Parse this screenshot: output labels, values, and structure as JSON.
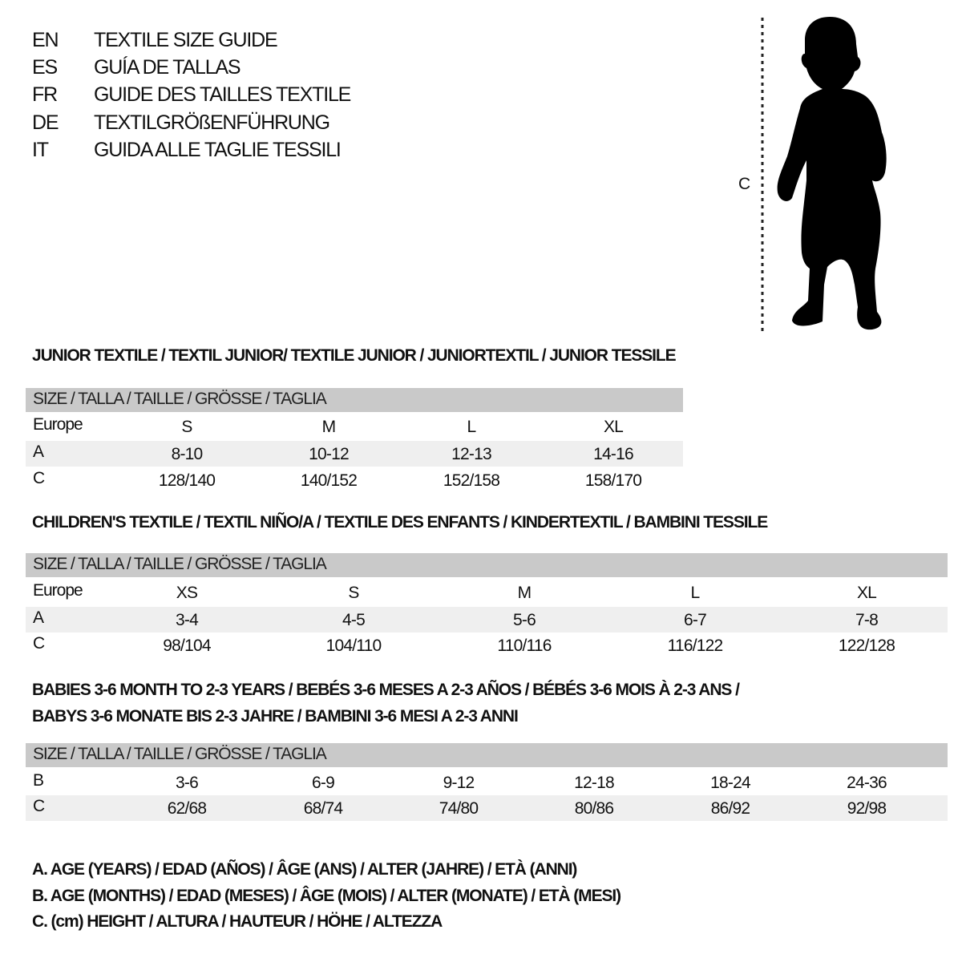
{
  "header": [
    {
      "code": "EN",
      "text": "TEXTILE SIZE GUIDE"
    },
    {
      "code": "ES",
      "text": "GUÍA DE TALLAS"
    },
    {
      "code": "FR",
      "text": "GUIDE DES TAILLES TEXTILE"
    },
    {
      "code": "DE",
      "text": "TEXTILGRÖßENFÜHRUNG"
    },
    {
      "code": "IT",
      "text": "GUIDA ALLE TAGLIE TESSILI"
    }
  ],
  "figure": {
    "measure_label": "C"
  },
  "sections": [
    {
      "title_lines": [
        "JUNIOR TEXTILE / TEXTIL JUNIOR/ TEXTILE JUNIOR / JUNIORTEXTIL / JUNIOR TESSILE"
      ],
      "header": "SIZE / TALLA / TAILLE / GRÖSSE / TAGLIA",
      "rows": [
        {
          "label": "Europe",
          "values": [
            "S",
            "M",
            "L",
            "XL"
          ]
        },
        {
          "label": "A",
          "values": [
            "8-10",
            "10-12",
            "12-13",
            "14-16"
          ]
        },
        {
          "label": "C",
          "values": [
            "128/140",
            "140/152",
            "152/158",
            "158/170"
          ]
        }
      ]
    },
    {
      "title_lines": [
        "CHILDREN'S TEXTILE / TEXTIL NIÑO/A / TEXTILE DES ENFANTS / KINDERTEXTIL / BAMBINI TESSILE"
      ],
      "header": "SIZE / TALLA / TAILLE / GRÖSSE / TAGLIA",
      "rows": [
        {
          "label": "Europe",
          "values": [
            "XS",
            "S",
            "M",
            "L",
            "XL"
          ]
        },
        {
          "label": "A",
          "values": [
            "3-4",
            "4-5",
            "5-6",
            "6-7",
            "7-8"
          ]
        },
        {
          "label": "C",
          "values": [
            "98/104",
            "104/110",
            "110/116",
            "116/122",
            "122/128"
          ]
        }
      ]
    },
    {
      "title_lines": [
        "BABIES 3-6 MONTH TO 2-3 YEARS / BEBÉS 3-6 MESES A 2-3 AÑOS / BÉBÉS 3-6 MOIS À 2-3 ANS /",
        "BABYS 3-6 MONATE BIS 2-3 JAHRE / BAMBINI 3-6 MESI A 2-3 ANNI"
      ],
      "header": "SIZE / TALLA / TAILLE / GRÖSSE / TAGLIA",
      "rows": [
        {
          "label": "B",
          "values": [
            "3-6",
            "6-9",
            "9-12",
            "12-18",
            "18-24",
            "24-36"
          ]
        },
        {
          "label": "C",
          "values": [
            "62/68",
            "68/74",
            "74/80",
            "80/86",
            "86/92",
            "92/98"
          ]
        }
      ]
    }
  ],
  "legend": [
    "A. AGE (YEARS) / EDAD (AÑOS) / ÂGE (ANS) / ALTER (JAHRE) / ETÀ (ANNI)",
    "B. AGE (MONTHS) / EDAD (MESES) / ÂGE (MOIS) / ALTER (MONATE) / ETÀ (MESI)",
    "C. (cm) HEIGHT / ALTURA / HAUTEUR / HÖHE / ALTEZZA"
  ],
  "colors": {
    "header_bar": "#c9c9c9",
    "row_shade": "#efefef",
    "text": "#111111"
  }
}
